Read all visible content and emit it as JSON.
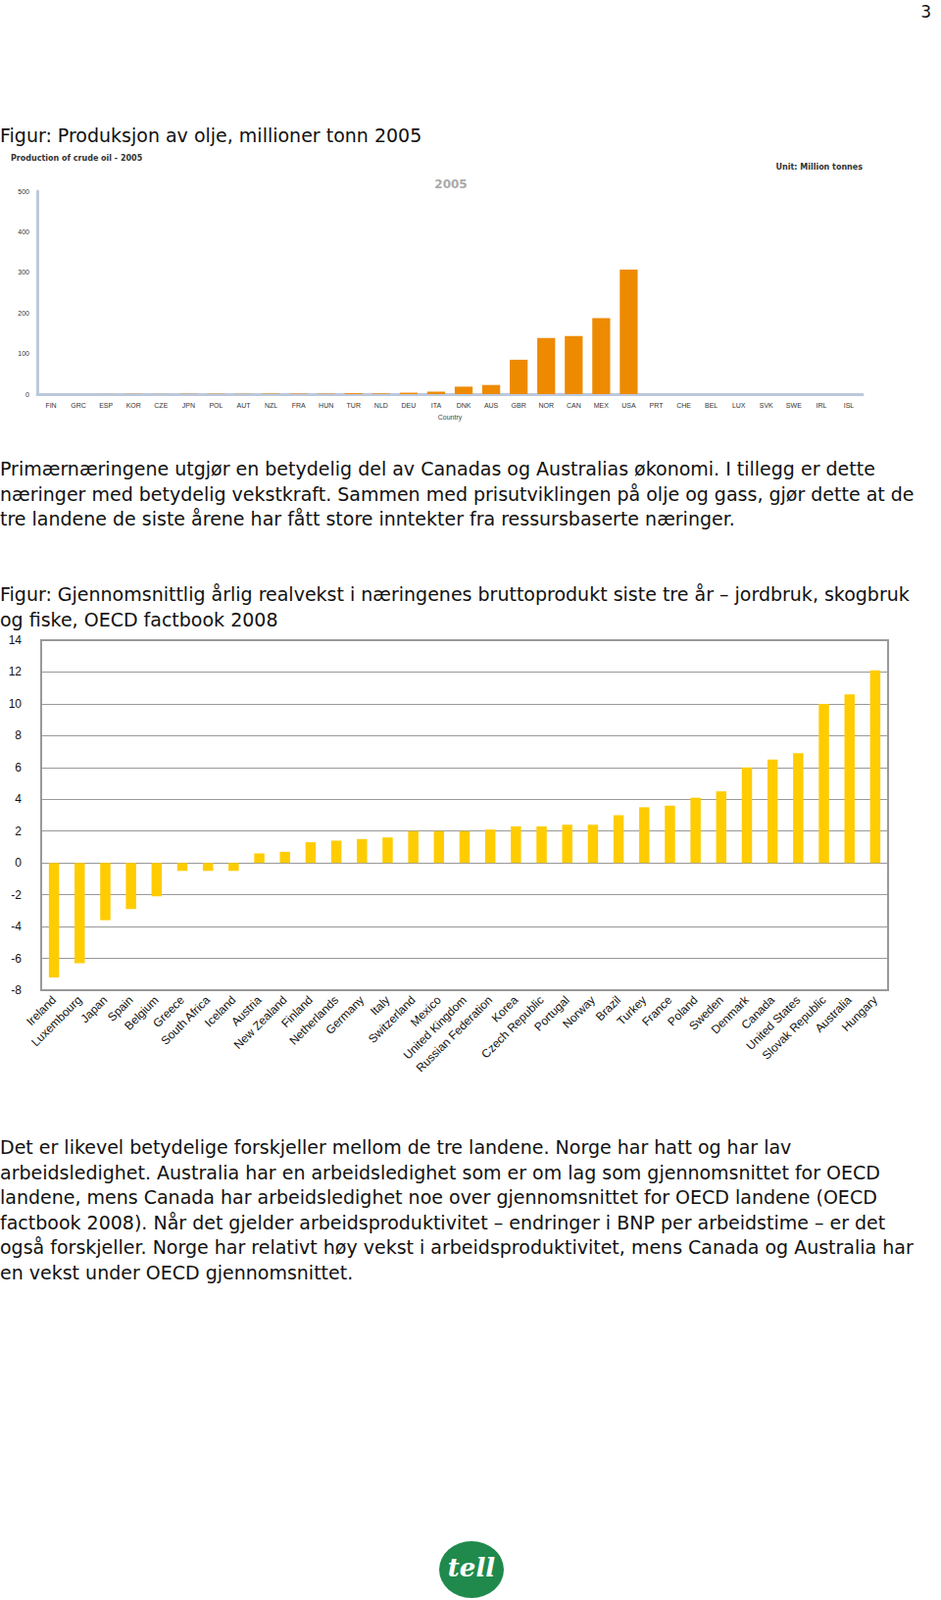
{
  "page": {
    "number": "3",
    "caption_1": "Figur: Produksjon av olje, millioner tonn 2005",
    "paragraph_1": "Primærnæringene utgjør en betydelig del av Canadas og Australias økonomi. I tillegg er dette næringer med betydelig vekstkraft. Sammen med prisutviklingen på olje og gass, gjør dette at de tre landene de siste årene har fått store inntekter fra ressursbaserte næringer.",
    "caption_2": "Figur: Gjennomsnittlig årlig realvekst i næringenes bruttoprodukt siste tre år – jordbruk, skogbruk og fiske, OECD factbook 2008",
    "paragraph_2": "Det er likevel betydelige forskjeller mellom de tre landene. Norge har hatt og har lav arbeidsledighet. Australia har en arbeidsledighet som er om lag som gjennomsnittet for OECD landene, mens Canada har arbeidsledighet noe over gjennomsnittet for OECD landene (OECD factbook 2008). Når det gjelder arbeidsproduktivitet – endringer i BNP per arbeidstime – er det også forskjeller. Norge har relativt høy vekst i arbeidsproduktivitet, mens Canada og Australia har en vekst under OECD gjennomsnittet.",
    "logo": "tell"
  },
  "chart_data": [
    {
      "type": "bar",
      "title": "Production of crude oil - 2005",
      "annotations": [
        "2005",
        "Unit: Million tonnes"
      ],
      "xlabel": "Country",
      "categories": [
        "FIN",
        "GRC",
        "ESP",
        "KOR",
        "CZE",
        "JPN",
        "POL",
        "AUT",
        "NZL",
        "FRA",
        "HUN",
        "TUR",
        "NLD",
        "DEU",
        "ITA",
        "DNK",
        "AUS",
        "GBR",
        "NOR",
        "CAN",
        "MEX",
        "USA",
        "PRT",
        "CHE",
        "BEL",
        "LUX",
        "SVK",
        "SWE",
        "IRL",
        "ISL"
      ],
      "values": [
        0.1,
        0.1,
        0.2,
        0.5,
        0.3,
        0.7,
        0.8,
        0.9,
        1.1,
        1.1,
        1.0,
        2.2,
        1.6,
        3.5,
        6.1,
        18.4,
        22.5,
        84.7,
        138.2,
        143,
        187,
        307,
        0,
        0,
        0,
        0,
        0,
        0,
        0,
        0
      ],
      "color": "#ee8a00",
      "ylim": [
        0,
        500
      ],
      "yticks": [
        0,
        100,
        200,
        300,
        400,
        500
      ],
      "grid": false
    },
    {
      "type": "bar",
      "categories": [
        "Ireland",
        "Luxembourg",
        "Japan",
        "Spain",
        "Belgium",
        "Greece",
        "South Africa",
        "Iceland",
        "Austria",
        "New Zealand",
        "Finland",
        "Netherlands",
        "Germany",
        "Italy",
        "Switzerland",
        "Mexico",
        "United Kingdom",
        "Russian Federation",
        "Korea",
        "Czech Republic",
        "Portugal",
        "Norway",
        "Brazil",
        "Turkey",
        "France",
        "Poland",
        "Sweden",
        "Denmark",
        "Canada",
        "United States",
        "Slovak Republic",
        "Australia",
        "Hungary"
      ],
      "values": [
        -7.2,
        -6.3,
        -3.6,
        -2.9,
        -2.1,
        -0.5,
        -0.5,
        -0.5,
        0.6,
        0.7,
        1.3,
        1.4,
        1.5,
        1.6,
        2.0,
        2.0,
        2.0,
        2.1,
        2.3,
        2.3,
        2.4,
        2.4,
        3.0,
        3.5,
        3.6,
        4.1,
        4.5,
        6.0,
        6.5,
        6.9,
        10.0,
        10.6,
        12.1
      ],
      "color": "#ffcc00",
      "ylim": [
        -8,
        14
      ],
      "yticks": [
        -8,
        -6,
        -4,
        -2,
        0,
        2,
        4,
        6,
        8,
        10,
        12,
        14
      ],
      "grid": true
    }
  ]
}
